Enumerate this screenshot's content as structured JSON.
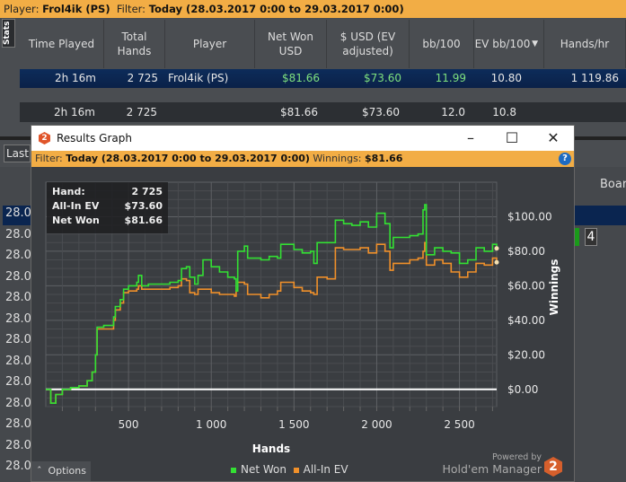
{
  "topbar": {
    "player_label": "Player:",
    "player": "Frol4ik (PS)",
    "filter_label": "Filter:",
    "filter": "Today (28.03.2017 0:00 to 29.03.2017 0:00)"
  },
  "stats_tab": "Stats",
  "columns": [
    "Time Played",
    "Total Hands",
    "Player",
    "Net Won USD",
    "$ USD (EV adjusted)",
    "bb/100",
    "EV bb/100",
    "Hands/hr"
  ],
  "selected_row": {
    "time": "2h 16m",
    "hands": "2 725",
    "player": "Frol4ik (PS)",
    "net_won": "$81.66",
    "ev_adj": "$73.60",
    "bb100": "11.99",
    "ev_bb100": "10.80",
    "hands_hr": "1 119.86"
  },
  "total_row": {
    "time": "2h 16m",
    "hands": "2 725",
    "net_won": "$81.66",
    "ev_adj": "$73.60",
    "bb100": "12.0",
    "ev_bb100": "10.8"
  },
  "background": {
    "last_button": "Last",
    "board_header": "Boar",
    "badge": "4",
    "date_cells": [
      "28.0",
      "28.0",
      "28.0",
      "28.0",
      "28.0",
      "28.0",
      "28.0",
      "28.0",
      "28.0",
      "28.0",
      "28.0",
      "28.0",
      "28.0"
    ]
  },
  "window": {
    "title": "Results Graph",
    "filter_label": "Filter:",
    "filter": "Today (28.03.2017 0:00 to 29.03.2017 0:00)",
    "winnings_label": "Winnings:",
    "winnings": "$81.66",
    "options": "Options",
    "powered_by": "Powered by",
    "brand": "Hold'em Manager",
    "brand_num": "2"
  },
  "tooltip": {
    "rows": [
      {
        "label": "Hand:",
        "value": "2 725"
      },
      {
        "label": "All-In EV",
        "value": "$73.60"
      },
      {
        "label": "Net Won",
        "value": "$81.66"
      }
    ]
  },
  "chart_data": {
    "type": "line",
    "xlabel": "Hands",
    "ylabel": "Winnings",
    "xticks": [
      500,
      1000,
      1500,
      2000,
      2500
    ],
    "xtick_labels": [
      "500",
      "1 000",
      "1 500",
      "2 000",
      "2 500"
    ],
    "yticks": [
      0,
      20,
      40,
      60,
      80,
      100
    ],
    "ytick_labels": [
      "$0.00",
      "$20.00",
      "$40.00",
      "$60.00",
      "$80.00",
      "$100.00"
    ],
    "xlim": [
      0,
      2725
    ],
    "ylim": [
      -10,
      120
    ],
    "grid": true,
    "legend_position": "bottom",
    "x": [
      0,
      30,
      60,
      100,
      150,
      200,
      250,
      280,
      300,
      310,
      350,
      400,
      410,
      420,
      450,
      470,
      500,
      550,
      560,
      580,
      620,
      700,
      750,
      800,
      820,
      850,
      870,
      900,
      920,
      950,
      1000,
      1050,
      1100,
      1140,
      1150,
      1160,
      1200,
      1220,
      1300,
      1350,
      1400,
      1420,
      1500,
      1550,
      1600,
      1620,
      1640,
      1700,
      1750,
      1800,
      1850,
      1900,
      1950,
      2000,
      2050,
      2080,
      2100,
      2200,
      2250,
      2280,
      2290,
      2300,
      2350,
      2400,
      2450,
      2500,
      2550,
      2600,
      2650,
      2700,
      2725
    ],
    "series": [
      {
        "name": "Net Won",
        "color": "#33e033",
        "values": [
          0,
          -8,
          -3,
          0,
          1,
          2,
          5,
          10,
          20,
          36,
          37,
          37,
          42,
          48,
          52,
          58,
          60,
          62,
          66,
          60,
          61,
          61,
          62,
          63,
          70,
          71,
          65,
          61,
          66,
          75,
          71,
          68,
          65,
          64,
          57,
          80,
          83,
          76,
          75,
          77,
          76,
          84,
          81,
          79,
          80,
          73,
          85,
          85,
          98,
          96,
          95,
          97,
          94,
          102,
          96,
          82,
          88,
          89,
          90,
          104,
          107,
          78,
          82,
          80,
          79,
          73,
          75,
          82,
          80,
          84,
          81.66
        ]
      },
      {
        "name": "All-In EV",
        "color": "#f0902a",
        "values": [
          0,
          -8,
          -3,
          0,
          1,
          2,
          5,
          10,
          20,
          35,
          35,
          35,
          40,
          46,
          50,
          56,
          57,
          58,
          60,
          58,
          58,
          58,
          59,
          60,
          64,
          63,
          56,
          55,
          58,
          58,
          56,
          55,
          55,
          54,
          57,
          62,
          61,
          55,
          53,
          55,
          57,
          62,
          59,
          57,
          56,
          55,
          65,
          64,
          82,
          81,
          81,
          82,
          79,
          84,
          80,
          69,
          73,
          75,
          76,
          80,
          85,
          72,
          75,
          73,
          68,
          65,
          68,
          73,
          72,
          76,
          73.6
        ]
      }
    ],
    "zero_line_color": "#ffffff"
  }
}
